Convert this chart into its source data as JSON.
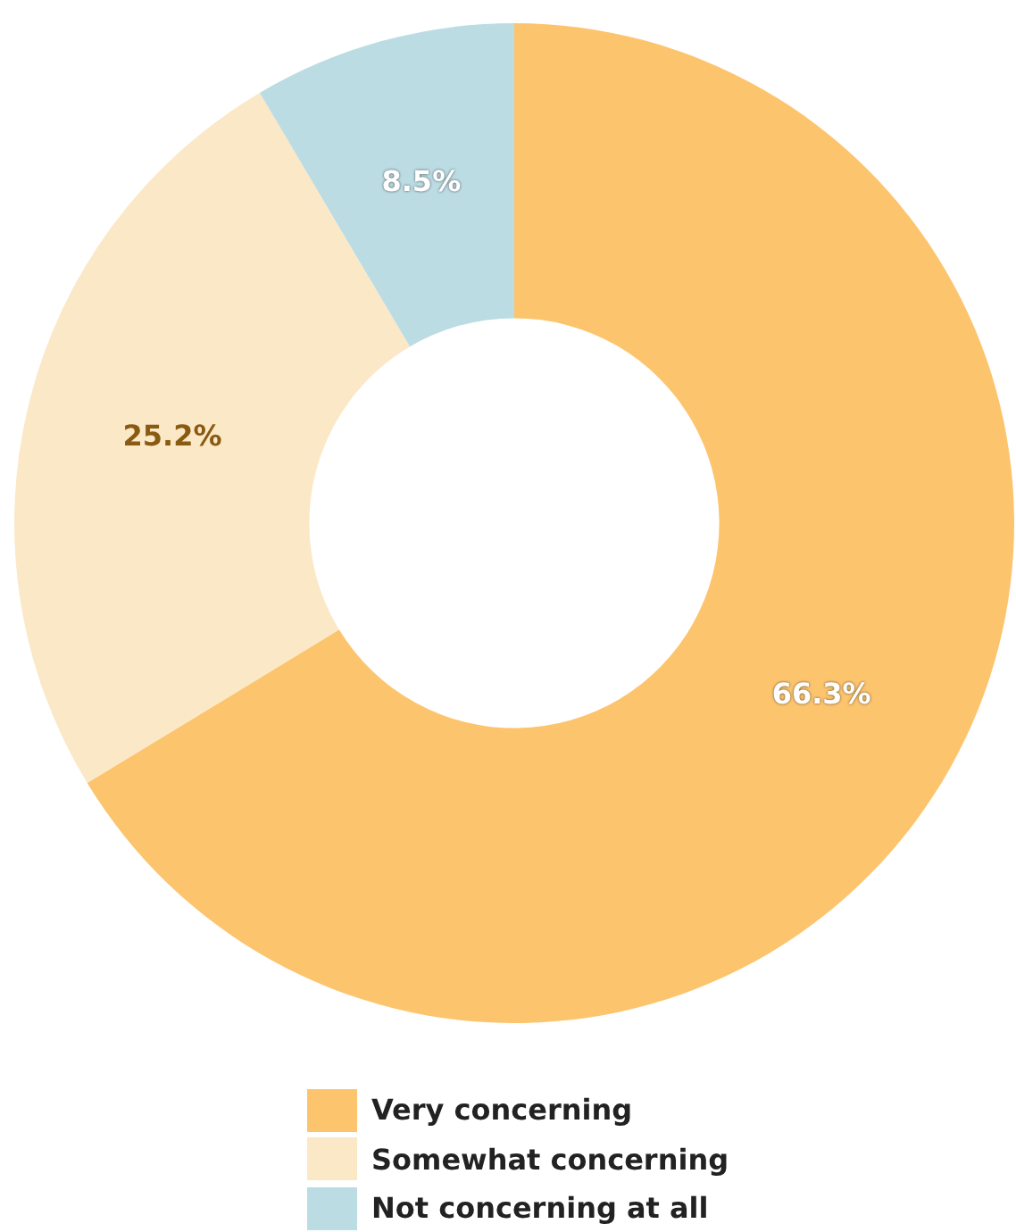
{
  "chart_data": {
    "type": "donut",
    "categories": [
      "Very concerning",
      "Somewhat concerning",
      "Not concerning at all"
    ],
    "values": [
      66.3,
      25.2,
      8.5
    ],
    "colors": [
      "#fdc46e",
      "#fbe8c7",
      "#bcdce3"
    ],
    "value_labels": [
      "66.3%",
      "25.2%",
      "8.5%"
    ],
    "legend": "bottom"
  }
}
